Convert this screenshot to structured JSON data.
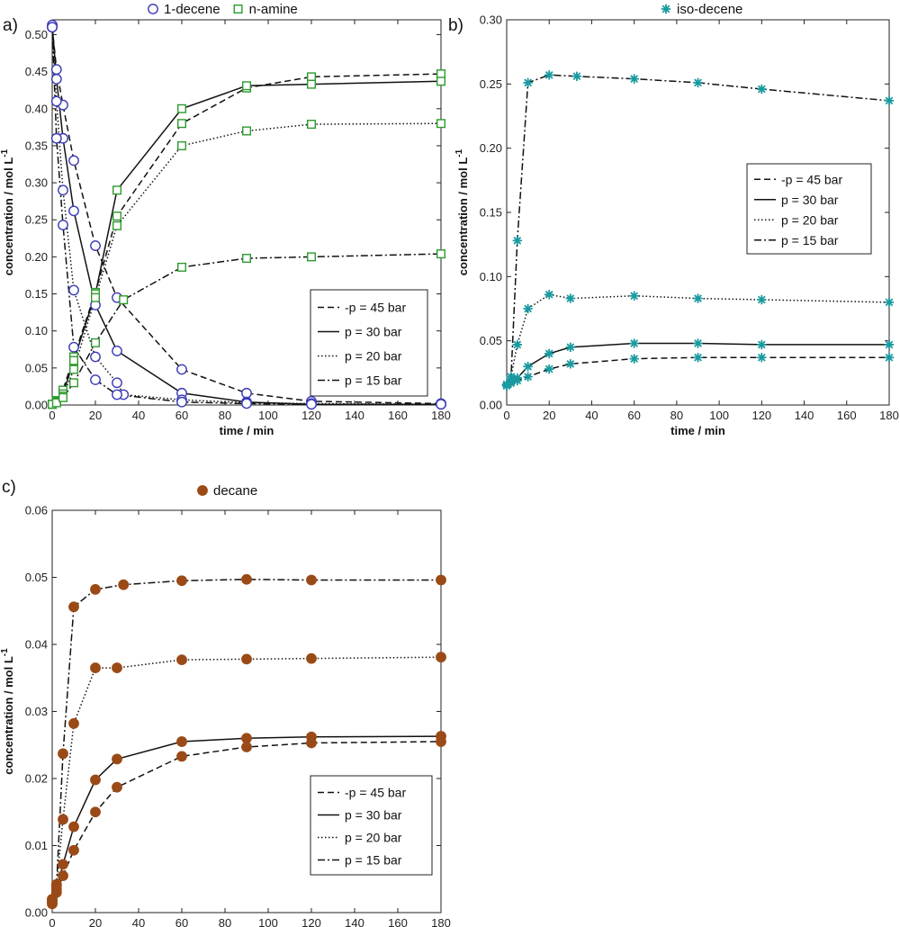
{
  "chart_data": [
    {
      "type": "line",
      "panel_label": "a)",
      "xlabel": "time / min",
      "ylabel": "concentration / mol L",
      "ylabel_sup": "-1",
      "xlim": [
        0,
        180
      ],
      "ylim": [
        0,
        0.52
      ],
      "xticks": [
        "0",
        "20",
        "40",
        "60",
        "80",
        "100",
        "120",
        "140",
        "160",
        "180"
      ],
      "yticks": [
        "0.00",
        "0.05",
        "0.10",
        "0.15",
        "0.20",
        "0.25",
        "0.30",
        "0.35",
        "0.40",
        "0.45",
        "0.50"
      ],
      "top_legend": [
        {
          "label": "1-decene",
          "marker": "circle",
          "color": "#3a3ab8"
        },
        {
          "label": "n-amine",
          "marker": "square",
          "color": "#2e9a2e"
        }
      ],
      "line_legend": [
        {
          "label": "-p = 45 bar",
          "dash": "dash"
        },
        {
          "label": "p = 30 bar",
          "dash": "solid"
        },
        {
          "label": "p = 20 bar",
          "dash": "dot"
        },
        {
          "label": "p = 15 bar",
          "dash": "dashdot"
        }
      ],
      "legend_position": "lower-right",
      "series": [
        {
          "species": "1-decene",
          "pressure": "45 bar",
          "dash": "dash",
          "marker": "circle",
          "color": "#3a3ab8",
          "x": [
            0,
            2,
            5,
            10,
            20,
            30,
            60,
            90,
            120,
            180
          ],
          "y": [
            0.51,
            0.453,
            0.405,
            0.33,
            0.215,
            0.145,
            0.048,
            0.016,
            0.005,
            0.002
          ]
        },
        {
          "species": "1-decene",
          "pressure": "30 bar",
          "dash": "solid",
          "marker": "circle",
          "color": "#3a3ab8",
          "x": [
            0,
            2,
            5,
            10,
            20,
            30,
            60,
            90,
            120,
            180
          ],
          "y": [
            0.513,
            0.44,
            0.36,
            0.262,
            0.135,
            0.073,
            0.016,
            0.004,
            0.001,
            0.001
          ]
        },
        {
          "species": "1-decene",
          "pressure": "20 bar",
          "dash": "dot",
          "marker": "circle",
          "color": "#3a3ab8",
          "x": [
            0,
            2,
            5,
            10,
            20,
            30,
            33,
            60,
            90,
            120,
            180
          ],
          "y": [
            0.51,
            0.41,
            0.29,
            0.155,
            0.065,
            0.03,
            0.014,
            0.007,
            0.003,
            0.002,
            0.001
          ]
        },
        {
          "species": "1-decene",
          "pressure": "15 bar",
          "dash": "dashdot",
          "marker": "circle",
          "color": "#3a3ab8",
          "x": [
            0,
            2,
            5,
            10,
            20,
            30,
            60,
            90,
            120,
            180
          ],
          "y": [
            0.51,
            0.36,
            0.243,
            0.078,
            0.034,
            0.014,
            0.004,
            0.002,
            0.001,
            0.001
          ]
        },
        {
          "species": "n-amine",
          "pressure": "45 bar",
          "dash": "dash",
          "marker": "square",
          "color": "#2e9a2e",
          "x": [
            0,
            2,
            5,
            10,
            20,
            30,
            60,
            90,
            120,
            180
          ],
          "y": [
            0.001,
            0.006,
            0.02,
            0.065,
            0.152,
            0.255,
            0.38,
            0.428,
            0.443,
            0.447
          ]
        },
        {
          "species": "n-amine",
          "pressure": "30 bar",
          "dash": "solid",
          "marker": "square",
          "color": "#2e9a2e",
          "x": [
            0,
            2,
            5,
            10,
            20,
            30,
            60,
            90,
            120,
            180
          ],
          "y": [
            0.001,
            0.005,
            0.015,
            0.06,
            0.15,
            0.29,
            0.4,
            0.431,
            0.433,
            0.437
          ]
        },
        {
          "species": "n-amine",
          "pressure": "20 bar",
          "dash": "dot",
          "marker": "square",
          "color": "#2e9a2e",
          "x": [
            0,
            2,
            5,
            10,
            20,
            30,
            60,
            90,
            120,
            180
          ],
          "y": [
            0.001,
            0.004,
            0.012,
            0.048,
            0.145,
            0.242,
            0.35,
            0.37,
            0.379,
            0.38
          ]
        },
        {
          "species": "n-amine",
          "pressure": "15 bar",
          "dash": "dashdot",
          "marker": "square",
          "color": "#2e9a2e",
          "x": [
            0,
            2,
            5,
            10,
            20,
            33,
            60,
            90,
            120,
            180
          ],
          "y": [
            0.001,
            0.003,
            0.01,
            0.03,
            0.084,
            0.142,
            0.186,
            0.198,
            0.2,
            0.204
          ]
        }
      ]
    },
    {
      "type": "line",
      "panel_label": "b)",
      "xlabel": "time / min",
      "ylabel": "concentration / mol L",
      "ylabel_sup": "-1",
      "xlim": [
        0,
        180
      ],
      "ylim": [
        0,
        0.3
      ],
      "xticks": [
        "0",
        "20",
        "40",
        "60",
        "80",
        "100",
        "120",
        "140",
        "160",
        "180"
      ],
      "yticks": [
        "0.00",
        "0.05",
        "0.10",
        "0.15",
        "0.20",
        "0.25",
        "0.30"
      ],
      "top_legend": [
        {
          "label": "iso-decene",
          "marker": "star",
          "color": "#1a9aa0"
        }
      ],
      "line_legend": [
        {
          "label": "-p = 45 bar",
          "dash": "dash"
        },
        {
          "label": "p = 30 bar",
          "dash": "solid"
        },
        {
          "label": "p = 20 bar",
          "dash": "dot"
        },
        {
          "label": "p = 15 bar",
          "dash": "dashdot"
        }
      ],
      "legend_position": "middle-right",
      "series": [
        {
          "species": "iso-decene",
          "pressure": "45 bar",
          "dash": "dash",
          "marker": "star",
          "color": "#1a9aa0",
          "x": [
            0,
            2,
            5,
            10,
            20,
            30,
            60,
            90,
            120,
            180
          ],
          "y": [
            0.015,
            0.017,
            0.019,
            0.022,
            0.028,
            0.032,
            0.036,
            0.037,
            0.037,
            0.037
          ]
        },
        {
          "species": "iso-decene",
          "pressure": "30 bar",
          "dash": "solid",
          "marker": "star",
          "color": "#1a9aa0",
          "x": [
            0,
            2,
            5,
            10,
            20,
            30,
            60,
            90,
            120,
            180
          ],
          "y": [
            0.015,
            0.018,
            0.021,
            0.03,
            0.04,
            0.045,
            0.048,
            0.048,
            0.047,
            0.047
          ]
        },
        {
          "species": "iso-decene",
          "pressure": "20 bar",
          "dash": "dot",
          "marker": "star",
          "color": "#1a9aa0",
          "x": [
            0,
            2,
            5,
            10,
            20,
            30,
            60,
            90,
            120,
            180
          ],
          "y": [
            0.016,
            0.022,
            0.047,
            0.075,
            0.086,
            0.083,
            0.085,
            0.083,
            0.082,
            0.08
          ]
        },
        {
          "species": "iso-decene",
          "pressure": "15 bar",
          "dash": "dashdot",
          "marker": "star",
          "color": "#1a9aa0",
          "x": [
            0,
            2,
            5,
            10,
            20,
            33,
            60,
            90,
            120,
            180
          ],
          "y": [
            0.016,
            0.02,
            0.128,
            0.251,
            0.257,
            0.256,
            0.254,
            0.251,
            0.246,
            0.237
          ]
        }
      ]
    },
    {
      "type": "line",
      "panel_label": "c)",
      "xlabel": "time / min",
      "ylabel": "concentration / mol L",
      "ylabel_sup": "-1",
      "xlim": [
        0,
        180
      ],
      "ylim": [
        0,
        0.06
      ],
      "xticks": [
        "0",
        "20",
        "40",
        "60",
        "80",
        "100",
        "120",
        "140",
        "160",
        "180"
      ],
      "yticks": [
        "0.00",
        "0.01",
        "0.02",
        "0.03",
        "0.04",
        "0.05",
        "0.06"
      ],
      "top_legend": [
        {
          "label": "decane",
          "marker": "filled-circle",
          "color": "#9a4a16"
        }
      ],
      "line_legend": [
        {
          "label": "-p = 45 bar",
          "dash": "dash"
        },
        {
          "label": "p = 30 bar",
          "dash": "solid"
        },
        {
          "label": "p = 20 bar",
          "dash": "dot"
        },
        {
          "label": "p = 15 bar",
          "dash": "dashdot"
        }
      ],
      "legend_position": "lower-right",
      "series": [
        {
          "species": "decane",
          "pressure": "45 bar",
          "dash": "dash",
          "marker": "filled-circle",
          "color": "#9a4a16",
          "x": [
            0,
            2,
            5,
            10,
            20,
            30,
            60,
            90,
            120,
            180
          ],
          "y": [
            0.0013,
            0.003,
            0.0055,
            0.0093,
            0.015,
            0.0187,
            0.0233,
            0.0247,
            0.0253,
            0.0255
          ]
        },
        {
          "species": "decane",
          "pressure": "30 bar",
          "dash": "solid",
          "marker": "filled-circle",
          "color": "#9a4a16",
          "x": [
            0,
            2,
            5,
            10,
            20,
            30,
            60,
            90,
            120,
            180
          ],
          "y": [
            0.0015,
            0.0035,
            0.0072,
            0.0128,
            0.0198,
            0.0229,
            0.0255,
            0.026,
            0.0262,
            0.0263
          ]
        },
        {
          "species": "decane",
          "pressure": "20 bar",
          "dash": "dot",
          "marker": "filled-circle",
          "color": "#9a4a16",
          "x": [
            0,
            2,
            5,
            10,
            20,
            30,
            60,
            90,
            120,
            180
          ],
          "y": [
            0.0018,
            0.0042,
            0.0139,
            0.0282,
            0.0365,
            0.0365,
            0.0377,
            0.0378,
            0.0379,
            0.0381
          ]
        },
        {
          "species": "decane",
          "pressure": "15 bar",
          "dash": "dashdot",
          "marker": "filled-circle",
          "color": "#9a4a16",
          "x": [
            0,
            2,
            5,
            10,
            20,
            33,
            60,
            90,
            120,
            180
          ],
          "y": [
            0.002,
            0.004,
            0.0237,
            0.0456,
            0.0482,
            0.0489,
            0.0495,
            0.0497,
            0.0496,
            0.0496
          ]
        }
      ]
    }
  ]
}
